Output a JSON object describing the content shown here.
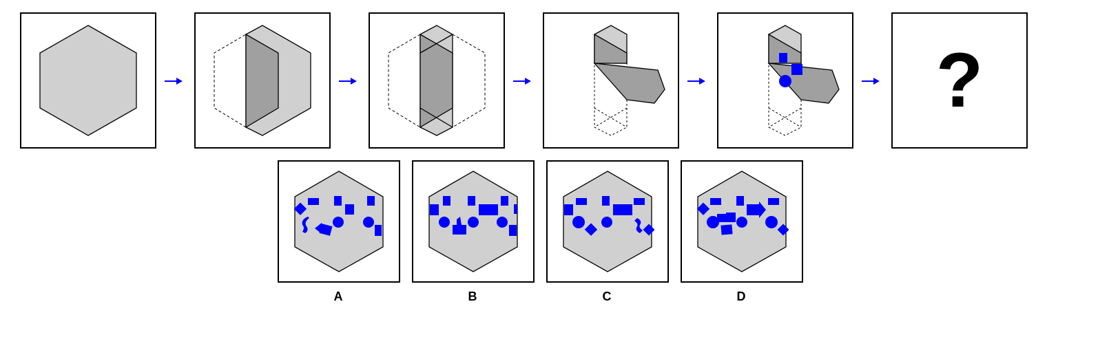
{
  "colors": {
    "face": "#d0d0d0",
    "fold": "#a0a0a0",
    "punch": "#0000ff",
    "arrow": "#0000ff",
    "outline": "#000000"
  },
  "sequence": {
    "step_count": 5,
    "unknown_symbol": "?"
  },
  "options": [
    {
      "label": "A"
    },
    {
      "label": "B"
    },
    {
      "label": "C"
    },
    {
      "label": "D"
    }
  ]
}
